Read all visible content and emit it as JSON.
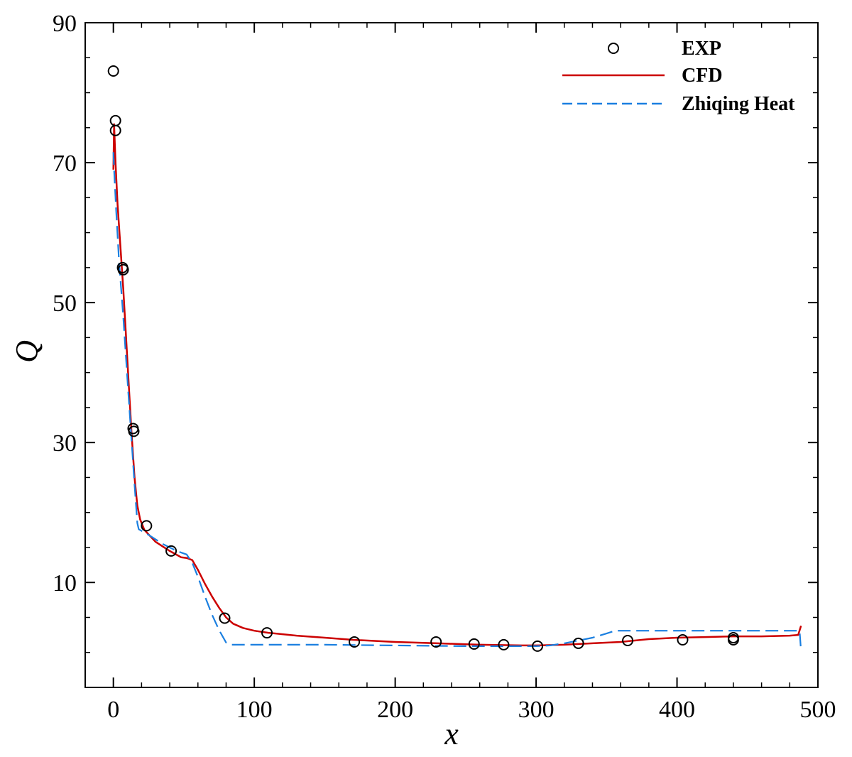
{
  "chart_data": {
    "type": "line",
    "title": "",
    "xlabel": "x",
    "ylabel": "Q",
    "xlim": [
      -20,
      500
    ],
    "ylim": [
      -5,
      90
    ],
    "xticks": [
      0,
      100,
      200,
      300,
      400,
      500
    ],
    "yticks": [
      10,
      30,
      50,
      70,
      90
    ],
    "xtick_labels": [
      "0",
      "100",
      "200",
      "300",
      "400",
      "500"
    ],
    "ytick_labels": [
      "10",
      "30",
      "50",
      "70",
      "90"
    ],
    "grid": false,
    "legend_position": "top-right",
    "series": [
      {
        "name": "EXP",
        "style": "markers",
        "marker": "open-circle",
        "color": "#000000",
        "points": [
          [
            0,
            83.1
          ],
          [
            1.5,
            76.0
          ],
          [
            1.5,
            74.6
          ],
          [
            6.5,
            55.0
          ],
          [
            7.0,
            54.7
          ],
          [
            14,
            32.0
          ],
          [
            14.5,
            31.6
          ],
          [
            23.5,
            18.1
          ],
          [
            41,
            14.5
          ],
          [
            79,
            4.9
          ],
          [
            109,
            2.8
          ],
          [
            171,
            1.5
          ],
          [
            229,
            1.5
          ],
          [
            256,
            1.2
          ],
          [
            277,
            1.1
          ],
          [
            301,
            0.9
          ],
          [
            330,
            1.3
          ],
          [
            365,
            1.7
          ],
          [
            404,
            1.8
          ],
          [
            440,
            2.1
          ],
          [
            440,
            1.8
          ]
        ]
      },
      {
        "name": "CFD",
        "style": "solid",
        "color": "#cc0000",
        "points": [
          [
            0,
            69
          ],
          [
            0.5,
            75.5
          ],
          [
            1.5,
            70
          ],
          [
            3,
            64
          ],
          [
            5,
            58
          ],
          [
            7,
            52
          ],
          [
            9,
            45
          ],
          [
            11,
            38
          ],
          [
            13,
            31
          ],
          [
            15,
            25
          ],
          [
            17,
            21
          ],
          [
            19,
            19
          ],
          [
            22,
            17.5
          ],
          [
            30,
            15.8
          ],
          [
            40,
            14.5
          ],
          [
            48,
            13.6
          ],
          [
            52,
            13.5
          ],
          [
            56,
            13.2
          ],
          [
            60,
            11.8
          ],
          [
            65,
            9.8
          ],
          [
            70,
            8.0
          ],
          [
            75,
            6.4
          ],
          [
            80,
            5.0
          ],
          [
            85,
            4.1
          ],
          [
            92,
            3.5
          ],
          [
            100,
            3.1
          ],
          [
            110,
            2.8
          ],
          [
            130,
            2.4
          ],
          [
            150,
            2.1
          ],
          [
            170,
            1.8
          ],
          [
            200,
            1.5
          ],
          [
            230,
            1.3
          ],
          [
            260,
            1.1
          ],
          [
            290,
            1.0
          ],
          [
            300,
            1.0
          ],
          [
            320,
            1.1
          ],
          [
            340,
            1.3
          ],
          [
            360,
            1.5
          ],
          [
            380,
            1.9
          ],
          [
            400,
            2.1
          ],
          [
            420,
            2.2
          ],
          [
            440,
            2.3
          ],
          [
            460,
            2.3
          ],
          [
            480,
            2.4
          ],
          [
            486,
            2.5
          ],
          [
            488,
            3.8
          ]
        ]
      },
      {
        "name": "Zhiqing Heat",
        "style": "dashed",
        "color": "#1a7fe0",
        "points": [
          [
            0,
            71.5
          ],
          [
            0.5,
            69
          ],
          [
            2,
            63
          ],
          [
            4,
            56
          ],
          [
            7,
            48
          ],
          [
            10,
            39
          ],
          [
            13,
            30
          ],
          [
            15,
            24
          ],
          [
            17,
            18.5
          ],
          [
            18,
            17.6
          ],
          [
            25,
            16.8
          ],
          [
            35,
            15.5
          ],
          [
            45,
            14.5
          ],
          [
            52,
            14.0
          ],
          [
            56,
            12.8
          ],
          [
            60,
            10.8
          ],
          [
            65,
            8.0
          ],
          [
            70,
            5.4
          ],
          [
            75,
            3.2
          ],
          [
            80,
            1.4
          ],
          [
            84,
            1.1
          ],
          [
            100,
            1.1
          ],
          [
            150,
            1.1
          ],
          [
            200,
            1.0
          ],
          [
            250,
            0.9
          ],
          [
            300,
            0.9
          ],
          [
            310,
            1.0
          ],
          [
            320,
            1.3
          ],
          [
            340,
            2.1
          ],
          [
            350,
            2.7
          ],
          [
            356,
            3.1
          ],
          [
            370,
            3.1
          ],
          [
            400,
            3.1
          ],
          [
            440,
            3.1
          ],
          [
            480,
            3.1
          ],
          [
            487,
            3.1
          ],
          [
            488,
            0.2
          ]
        ]
      }
    ]
  }
}
